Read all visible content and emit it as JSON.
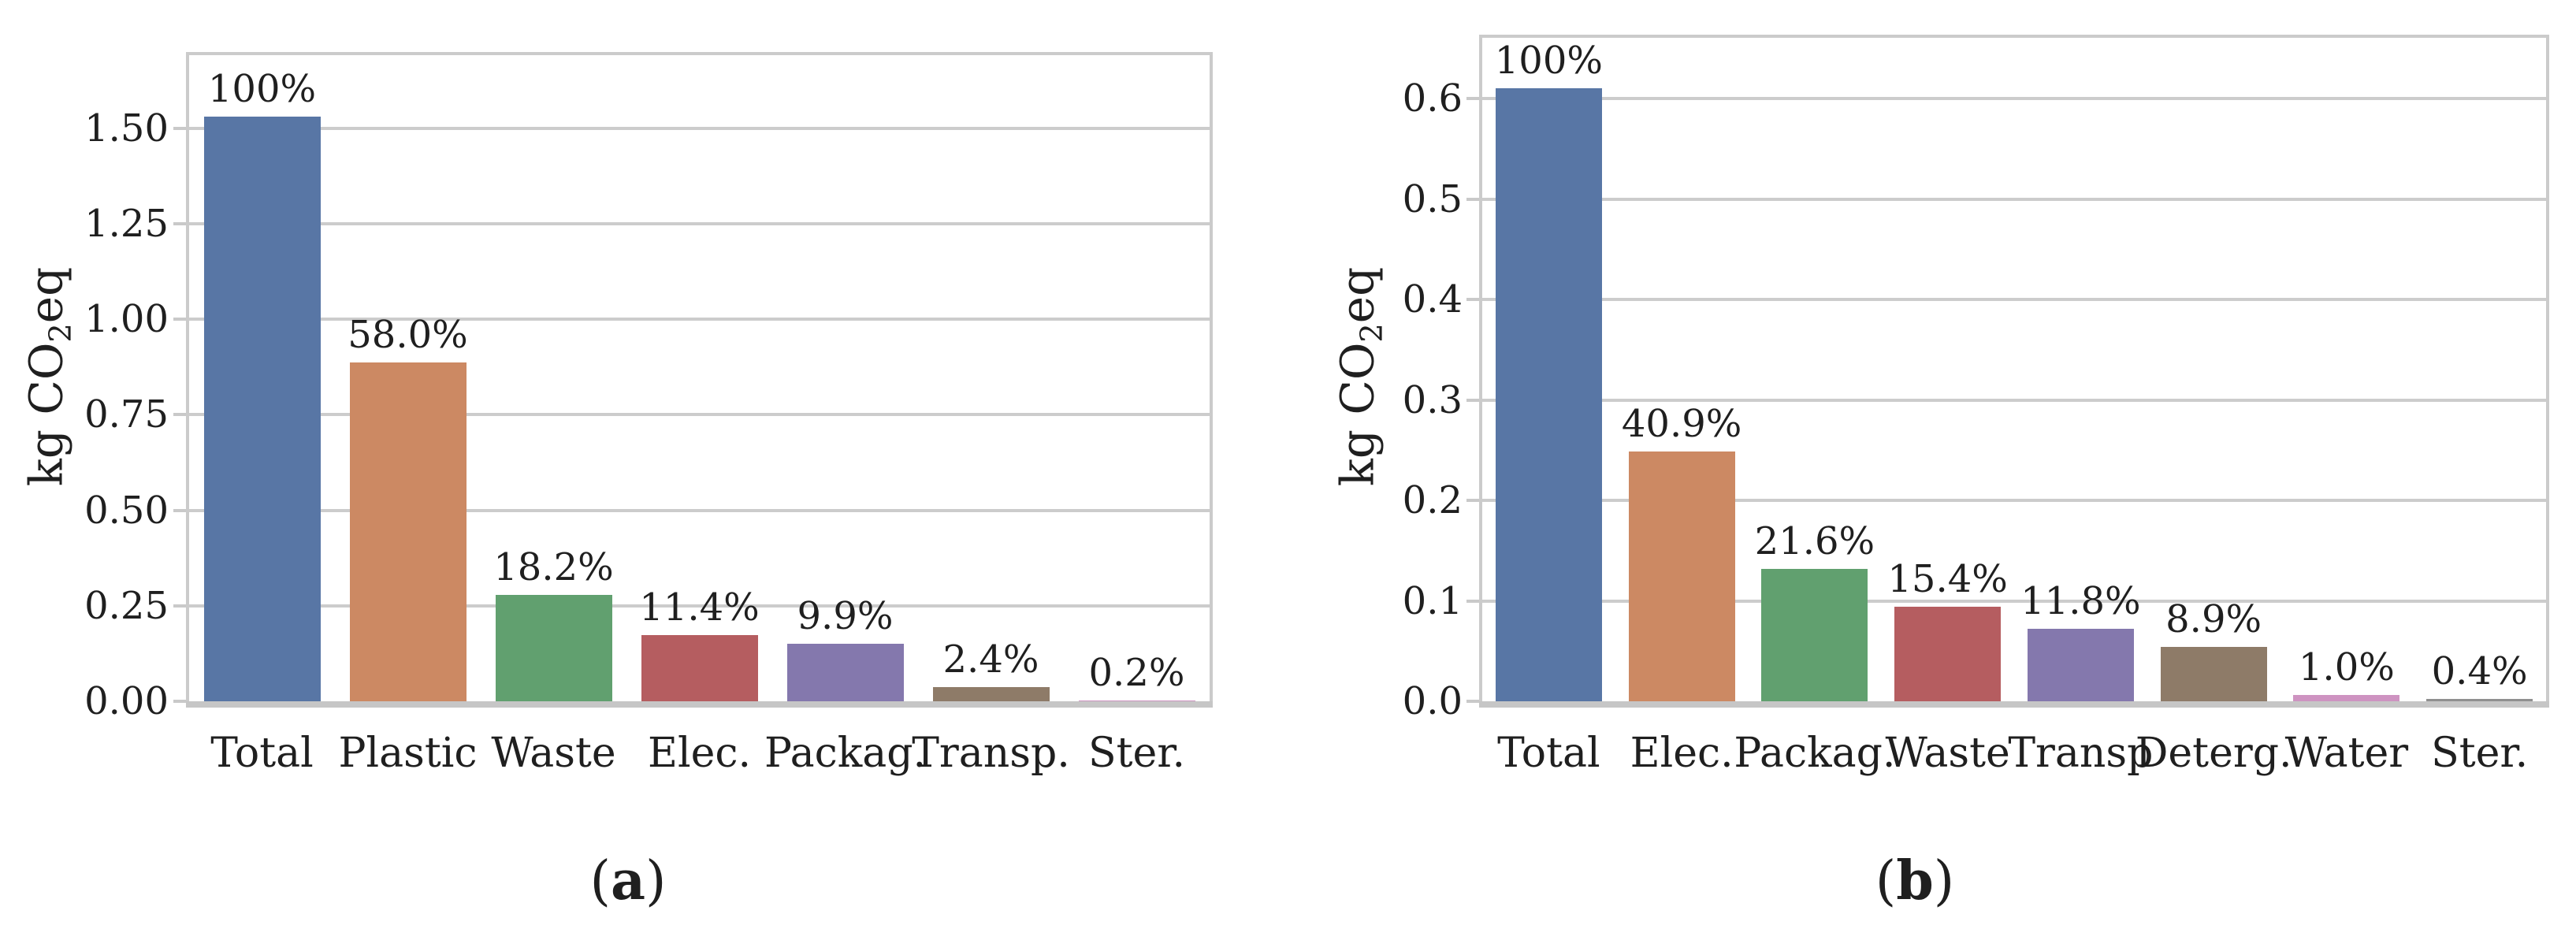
{
  "figure": {
    "background": "#ffffff",
    "text_color": "#1f1f1f",
    "grid_color": "#cccccc",
    "spine_color": "#c9c9c9",
    "unit": "kg CO2eq"
  },
  "chart_data": [
    {
      "id": "a",
      "type": "bar",
      "caption": {
        "open": "(",
        "letter": "a",
        "close": ")"
      },
      "ylabel": {
        "pre": "kg CO",
        "sub": "2",
        "post": "eq"
      },
      "categories": [
        "Total",
        "Plastic",
        "Waste",
        "Elec.",
        "Packag.",
        "Transp.",
        "Ster."
      ],
      "values_kg_co2eq": [
        1.53,
        0.887,
        0.278,
        0.174,
        0.151,
        0.037,
        0.003
      ],
      "bar_labels": [
        "100%",
        "58.0%",
        "18.2%",
        "11.4%",
        "9.9%",
        "2.4%",
        "0.2%"
      ],
      "bar_colors": [
        "#5876A5",
        "#CC8963",
        "#61A06F",
        "#B55D60",
        "#8478AD",
        "#8E7B68",
        "#CE93C1"
      ],
      "ytick_values": [
        0.0,
        0.25,
        0.5,
        0.75,
        1.0,
        1.25,
        1.5
      ],
      "ytick_labels": [
        "0.00",
        "0.25",
        "0.50",
        "0.75",
        "1.00",
        "1.25",
        "1.50"
      ],
      "ylim": [
        0,
        1.69
      ],
      "grid": true,
      "legend": null
    },
    {
      "id": "b",
      "type": "bar",
      "caption": {
        "open": "(",
        "letter": "b",
        "close": ")"
      },
      "ylabel": {
        "pre": "kg CO",
        "sub": "2",
        "post": "eq"
      },
      "categories": [
        "Total",
        "Elec.",
        "Packag.",
        "Waste",
        "Transp",
        "Deterg.",
        "Water",
        "Ster."
      ],
      "values_kg_co2eq": [
        0.61,
        0.249,
        0.132,
        0.094,
        0.072,
        0.054,
        0.006,
        0.002
      ],
      "bar_labels": [
        "100%",
        "40.9%",
        "21.6%",
        "15.4%",
        "11.8%",
        "8.9%",
        "1.0%",
        "0.4%"
      ],
      "bar_colors": [
        "#5876A5",
        "#CC8963",
        "#61A06F",
        "#B55D60",
        "#8478AD",
        "#8E7B68",
        "#CE93C1",
        "#909090"
      ],
      "ytick_values": [
        0.0,
        0.1,
        0.2,
        0.3,
        0.4,
        0.5,
        0.6
      ],
      "ytick_labels": [
        "0.0",
        "0.1",
        "0.2",
        "0.3",
        "0.4",
        "0.5",
        "0.6"
      ],
      "ylim": [
        0,
        0.66
      ],
      "grid": true,
      "legend": null
    }
  ]
}
